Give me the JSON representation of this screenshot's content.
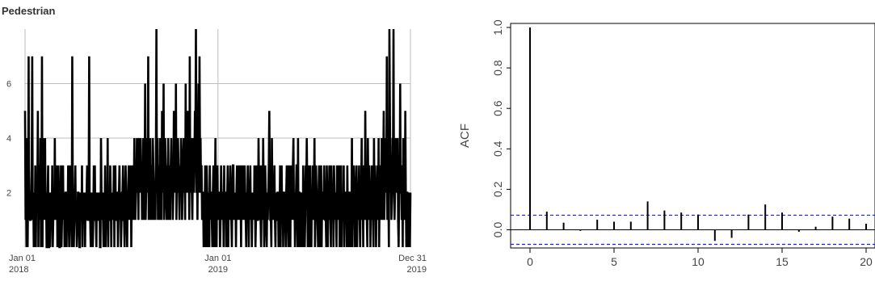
{
  "chart_data": [
    {
      "type": "line",
      "title": "Pedestrian",
      "xlabel": "",
      "ylabel": "",
      "x_range": [
        "2018-01-01",
        "2019-12-31"
      ],
      "ylim": [
        0,
        8
      ],
      "grid": true,
      "grid_direction": "horizontal and at year boundary",
      "y_ticks": [
        "2",
        "4",
        "6"
      ],
      "x_ticks": [
        {
          "line1": "Jan 01",
          "line2": "2018",
          "date": "2018-01-01"
        },
        {
          "line1": "Jan 01",
          "line2": "2019",
          "date": "2019-01-01"
        },
        {
          "line1": "Dec 31",
          "line2": "2019",
          "date": "2019-12-31"
        }
      ],
      "series": [
        {
          "color": "#000000",
          "frequency": "daily",
          "start": "2018-01-01",
          "values": [
            5,
            1,
            2,
            0,
            4,
            0,
            2,
            7,
            1,
            2,
            1,
            1,
            2,
            3,
            7,
            1,
            2,
            0,
            1,
            1,
            3,
            0,
            2,
            2,
            2,
            5,
            0,
            3,
            2,
            1,
            4,
            0,
            1,
            7,
            0,
            3,
            4,
            2,
            1,
            4,
            1,
            2,
            0,
            0,
            2,
            3,
            0,
            0,
            2,
            0,
            1,
            2,
            1,
            3,
            0,
            1,
            2,
            1,
            4,
            1,
            2,
            1,
            3,
            0,
            2,
            3,
            2,
            0,
            0,
            1,
            3,
            0,
            1,
            2,
            3,
            1,
            2,
            0,
            1,
            2,
            2,
            0,
            2,
            1,
            3,
            1,
            0,
            2,
            3,
            1,
            1,
            0,
            7,
            2,
            2,
            0,
            1,
            2,
            3,
            1,
            1,
            0,
            1,
            2,
            2,
            1,
            0,
            0,
            2,
            1,
            1,
            3,
            0,
            2,
            1,
            1,
            2,
            0,
            2,
            1,
            2,
            3,
            1,
            1,
            2,
            7,
            1,
            1,
            0,
            2,
            1,
            2,
            0,
            1,
            3,
            2,
            3,
            1,
            1,
            0,
            2,
            1,
            2,
            1,
            1,
            2,
            0,
            0,
            4,
            2,
            1,
            2,
            1,
            0,
            2,
            1,
            3,
            0,
            1,
            2,
            1,
            4,
            0,
            2,
            1,
            1,
            3,
            2,
            0,
            2,
            1,
            2,
            1,
            3,
            0,
            2,
            3,
            1,
            1,
            2,
            2,
            0,
            1,
            2,
            3,
            1,
            2,
            0,
            1,
            2,
            2,
            3,
            1,
            1,
            0,
            2,
            3,
            2,
            1,
            0,
            2,
            2,
            3,
            1,
            2,
            1,
            3,
            0,
            2,
            2,
            3,
            1,
            2,
            4,
            2,
            1,
            3,
            2,
            4,
            3,
            2,
            1,
            4,
            3,
            2,
            4,
            2,
            3,
            1,
            2,
            4,
            3,
            1,
            2,
            6,
            1,
            2,
            3,
            4,
            2,
            7,
            1,
            3,
            2,
            4,
            1,
            3,
            2,
            1,
            4,
            3,
            2,
            1,
            2,
            1,
            3,
            8,
            2,
            4,
            1,
            3,
            2,
            1,
            4,
            3,
            2,
            1,
            5,
            2,
            3,
            6,
            1,
            2,
            4,
            3,
            2,
            1,
            3,
            2,
            4,
            1,
            3,
            2,
            1,
            3,
            4,
            2,
            3,
            1,
            2,
            5,
            3,
            4,
            2,
            6,
            1,
            3,
            2,
            4,
            3,
            2,
            1,
            3,
            2,
            4,
            3,
            1,
            2,
            3,
            4,
            2,
            3,
            1,
            6,
            2,
            3,
            4,
            5,
            2,
            3,
            1,
            7,
            2,
            3,
            4,
            2,
            1,
            3,
            4,
            2,
            3,
            5,
            4,
            8,
            2,
            3,
            1,
            4,
            6,
            2,
            7,
            3,
            4,
            2,
            3,
            1,
            2,
            2,
            0,
            2,
            1,
            3,
            0,
            2,
            3,
            2,
            0,
            1,
            2,
            0,
            3,
            1,
            2,
            2,
            1,
            0,
            2,
            3,
            1,
            0,
            2,
            4,
            1,
            0,
            2,
            3,
            1,
            2,
            2,
            2,
            0,
            1,
            3,
            2,
            1,
            2,
            2,
            0,
            3,
            1,
            2,
            2,
            0,
            1,
            2,
            3,
            0,
            2,
            1,
            2,
            3,
            2,
            1,
            0,
            2,
            3,
            3,
            1,
            2,
            1,
            2,
            0,
            2,
            3,
            1,
            2,
            3,
            1,
            2,
            3,
            2,
            0,
            3,
            1,
            2,
            3,
            2,
            1,
            3,
            2,
            1,
            0,
            2,
            1,
            3,
            2,
            0,
            2,
            1,
            3,
            1,
            2,
            0,
            2,
            1,
            2,
            1,
            3,
            2,
            0,
            1,
            3,
            2,
            1,
            1,
            4,
            2,
            1,
            3,
            1,
            0,
            2,
            3,
            1,
            4,
            2,
            0,
            1,
            3,
            2,
            1,
            0,
            2,
            1,
            2,
            3,
            5,
            2,
            1,
            1,
            0,
            4,
            2,
            1,
            2,
            1,
            3,
            1,
            0,
            2,
            1,
            1,
            2,
            2,
            0,
            1,
            1,
            3,
            0,
            2,
            3,
            1,
            2,
            0,
            2,
            2,
            1,
            1,
            0,
            2,
            3,
            2,
            1,
            0,
            3,
            2,
            1,
            0,
            3,
            2,
            2,
            1,
            3,
            4,
            1,
            2,
            0,
            1,
            2,
            3,
            3,
            0,
            4,
            0,
            2,
            2,
            1,
            0,
            2,
            0,
            2,
            0,
            3,
            2,
            1,
            0,
            1,
            3,
            2,
            4,
            2,
            0,
            1,
            3,
            0,
            2,
            3,
            1,
            0,
            2,
            1,
            3,
            1,
            2,
            4,
            0,
            1,
            3,
            2,
            2,
            1,
            0,
            2,
            3,
            1,
            0,
            2,
            3,
            0,
            2,
            2,
            1,
            2,
            3,
            2,
            1,
            1,
            0,
            3,
            2,
            0,
            2,
            1,
            3,
            2,
            1,
            0,
            3,
            2,
            1,
            2,
            0,
            3,
            2,
            1,
            2,
            1,
            0,
            3,
            2,
            1,
            2,
            3,
            0,
            1,
            2,
            3,
            0,
            2,
            1,
            1,
            3,
            0,
            2,
            1,
            2,
            2,
            0,
            3,
            1,
            2,
            0,
            2,
            2,
            1,
            0,
            1,
            4,
            0,
            2,
            1,
            3,
            2,
            0,
            1,
            2,
            3,
            0,
            2,
            1,
            2,
            3,
            1,
            0,
            2,
            2,
            4,
            1,
            2,
            0,
            3,
            2,
            1,
            5,
            2,
            3,
            1,
            0,
            4,
            2,
            1,
            3,
            2,
            0,
            2,
            1,
            3,
            2,
            1,
            0,
            4,
            1,
            3,
            2,
            0,
            2,
            2,
            3,
            1,
            4,
            0,
            2,
            1,
            3,
            2,
            4,
            1,
            2,
            3,
            5,
            1,
            2,
            4,
            3,
            2,
            7,
            1,
            3,
            2,
            0,
            8,
            5,
            2,
            3,
            1,
            2,
            4,
            3,
            8,
            2,
            1,
            2,
            4,
            3,
            2,
            3,
            4,
            1,
            0,
            2,
            2,
            6,
            2,
            3,
            1,
            2,
            0,
            4,
            2,
            3,
            1,
            5,
            2,
            0,
            2,
            2,
            1,
            0,
            2,
            1,
            0,
            2
          ]
        }
      ]
    },
    {
      "type": "bar",
      "title": "",
      "xlabel": "",
      "ylabel": "ACF",
      "xlim": [
        0,
        20
      ],
      "ylim": [
        -0.09,
        1.02
      ],
      "x_ticks": [
        0,
        5,
        10,
        15,
        20
      ],
      "y_ticks": [
        "0.0",
        "0.2",
        "0.4",
        "0.6",
        "0.8",
        "1.0"
      ],
      "lags": [
        0,
        1,
        2,
        3,
        4,
        5,
        6,
        7,
        8,
        9,
        10,
        11,
        12,
        13,
        14,
        15,
        16,
        17,
        18,
        19,
        20
      ],
      "values": [
        1.0,
        0.09,
        0.035,
        -0.005,
        0.05,
        0.04,
        0.04,
        0.14,
        0.095,
        0.085,
        0.075,
        -0.055,
        -0.04,
        0.075,
        0.125,
        0.085,
        -0.01,
        0.015,
        0.065,
        0.055,
        0.03
      ],
      "confidence_band": 0.072,
      "confidence_color": "#1a1aff",
      "bar_color": "#000000"
    }
  ]
}
